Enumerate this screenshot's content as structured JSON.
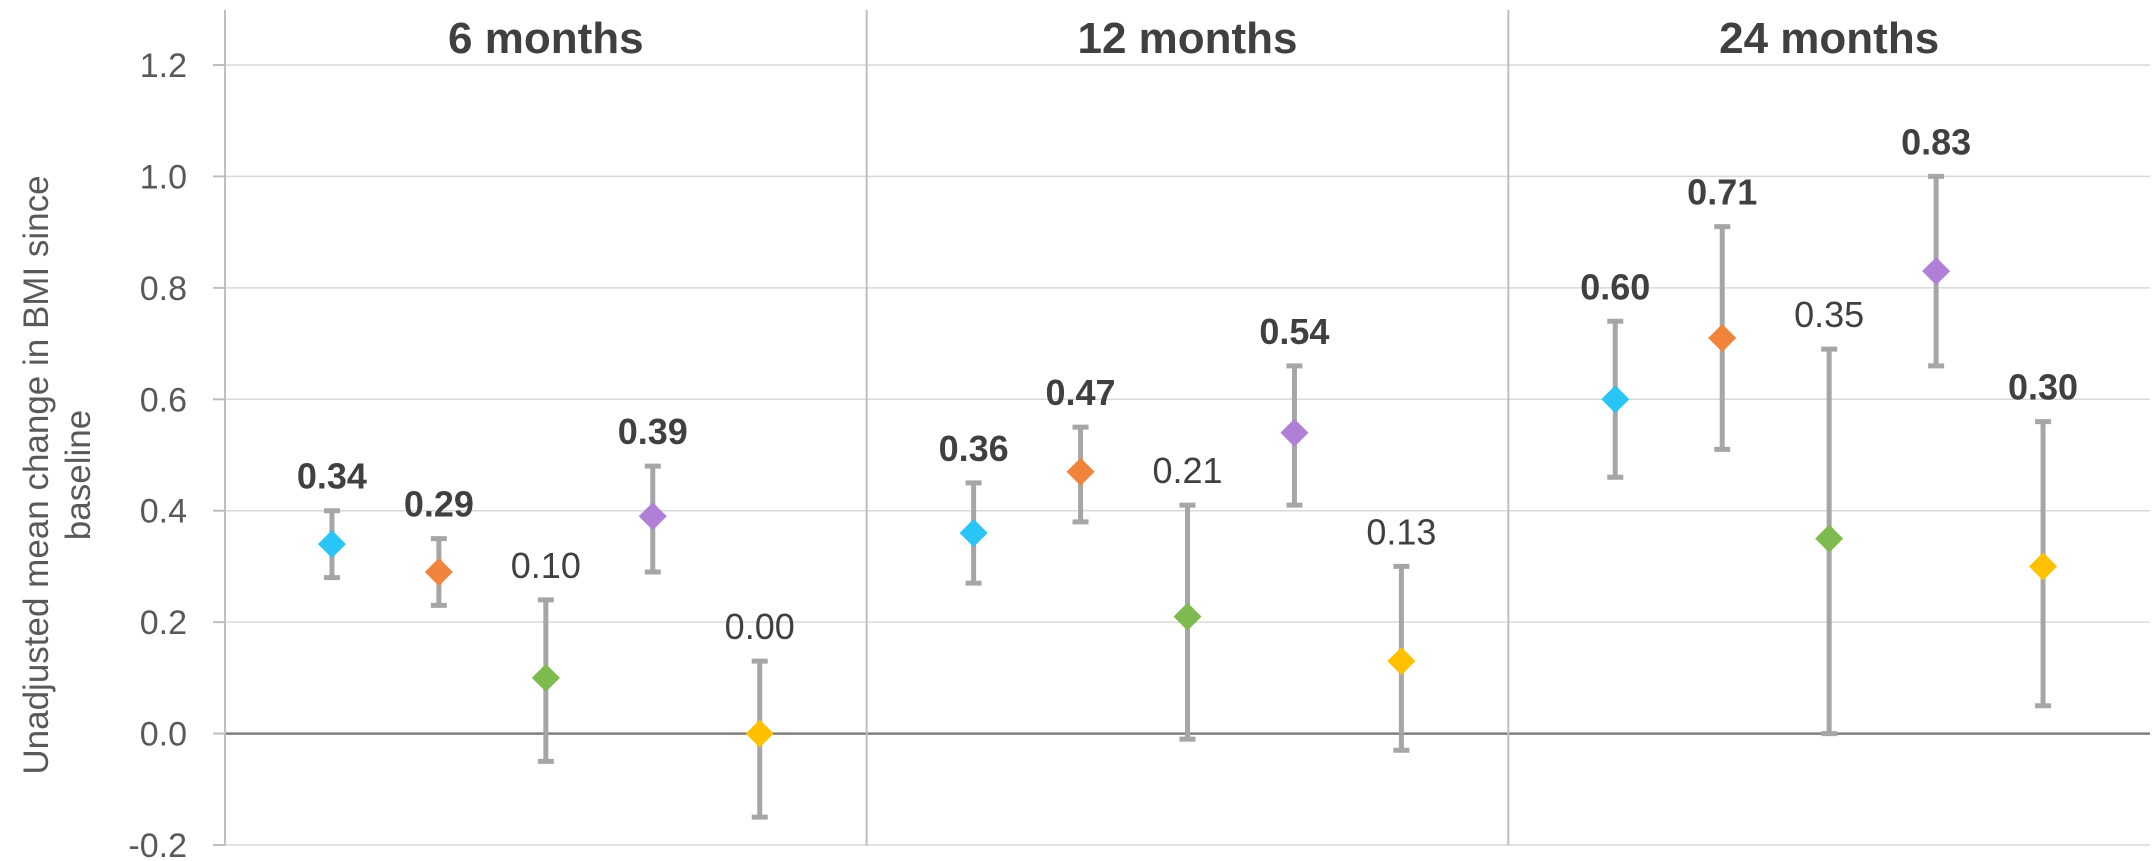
{
  "chart_data": {
    "type": "scatter",
    "ylabel": "Unadjusted mean change in BMI since baseline",
    "ylim": [
      -0.2,
      1.2
    ],
    "yticks": [
      "-0.2",
      "0.0",
      "0.2",
      "0.4",
      "0.6",
      "0.8",
      "1.0",
      "1.2"
    ],
    "grid": true,
    "series_colors": [
      "#29c5f6",
      "#f0843c",
      "#7dba4f",
      "#b07fd8",
      "#ffc000"
    ],
    "panels": [
      {
        "title": "6 months",
        "points": [
          {
            "value": 0.34,
            "lower": 0.28,
            "upper": 0.4,
            "label": "0.34",
            "bold": true
          },
          {
            "value": 0.29,
            "lower": 0.23,
            "upper": 0.35,
            "label": "0.29",
            "bold": true
          },
          {
            "value": 0.1,
            "lower": -0.05,
            "upper": 0.24,
            "label": "0.10",
            "bold": false
          },
          {
            "value": 0.39,
            "lower": 0.29,
            "upper": 0.48,
            "label": "0.39",
            "bold": true
          },
          {
            "value": 0.0,
            "lower": -0.15,
            "upper": 0.13,
            "label": "0.00",
            "bold": false
          }
        ]
      },
      {
        "title": "12 months",
        "points": [
          {
            "value": 0.36,
            "lower": 0.27,
            "upper": 0.45,
            "label": "0.36",
            "bold": true
          },
          {
            "value": 0.47,
            "lower": 0.38,
            "upper": 0.55,
            "label": "0.47",
            "bold": true
          },
          {
            "value": 0.21,
            "lower": -0.01,
            "upper": 0.41,
            "label": "0.21",
            "bold": false
          },
          {
            "value": 0.54,
            "lower": 0.41,
            "upper": 0.66,
            "label": "0.54",
            "bold": true
          },
          {
            "value": 0.13,
            "lower": -0.03,
            "upper": 0.3,
            "label": "0.13",
            "bold": false
          }
        ]
      },
      {
        "title": "24 months",
        "points": [
          {
            "value": 0.6,
            "lower": 0.46,
            "upper": 0.74,
            "label": "0.60",
            "bold": true
          },
          {
            "value": 0.71,
            "lower": 0.51,
            "upper": 0.91,
            "label": "0.71",
            "bold": true
          },
          {
            "value": 0.35,
            "lower": 0.0,
            "upper": 0.69,
            "label": "0.35",
            "bold": false
          },
          {
            "value": 0.83,
            "lower": 0.66,
            "upper": 1.0,
            "label": "0.83",
            "bold": true
          },
          {
            "value": 0.3,
            "lower": 0.05,
            "upper": 0.56,
            "label": "0.30",
            "bold": true
          }
        ]
      }
    ]
  }
}
